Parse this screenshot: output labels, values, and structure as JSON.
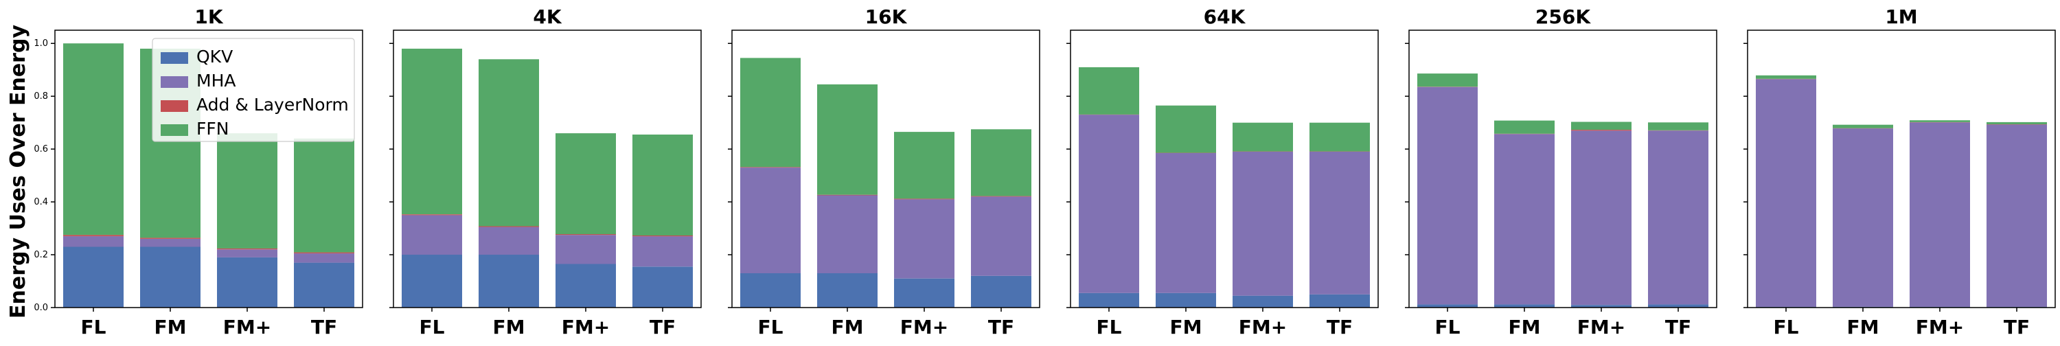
{
  "figure": {
    "ylabel": "Energy Uses Over Energy"
  },
  "legend": {
    "placement": "top-right of first panel",
    "items": [
      "QKV",
      "MHA",
      "Add & LayerNorm",
      "FFN"
    ]
  },
  "colors": {
    "QKV": "#4c72b0",
    "MHA": "#8172b3",
    "Add & LayerNorm": "#c44e52",
    "FFN": "#55a868"
  },
  "chart_data": [
    {
      "type": "bar",
      "stacked": true,
      "title": "1K",
      "categories": [
        "FL",
        "FM",
        "FM+",
        "TF"
      ],
      "ylim": [
        0,
        1.05
      ],
      "yticks": [
        "0.0",
        "0.2",
        "0.4",
        "0.6",
        "0.8",
        "1.0"
      ],
      "show_ytick_labels": true,
      "series": [
        {
          "name": "QKV",
          "values": [
            0.23,
            0.23,
            0.19,
            0.17
          ]
        },
        {
          "name": "MHA",
          "values": [
            0.04,
            0.03,
            0.03,
            0.035
          ]
        },
        {
          "name": "Add & LayerNorm",
          "values": [
            0.005,
            0.004,
            0.004,
            0.004
          ]
        },
        {
          "name": "FFN",
          "values": [
            0.725,
            0.716,
            0.436,
            0.431
          ]
        }
      ]
    },
    {
      "type": "bar",
      "stacked": true,
      "title": "4K",
      "categories": [
        "FL",
        "FM",
        "FM+",
        "TF"
      ],
      "ylim": [
        0,
        1.05
      ],
      "yticks": [
        "0.0",
        "0.2",
        "0.4",
        "0.6",
        "0.8",
        "1.0"
      ],
      "show_ytick_labels": false,
      "series": [
        {
          "name": "QKV",
          "values": [
            0.2,
            0.2,
            0.165,
            0.155
          ]
        },
        {
          "name": "MHA",
          "values": [
            0.15,
            0.105,
            0.11,
            0.115
          ]
        },
        {
          "name": "Add & LayerNorm",
          "values": [
            0.003,
            0.003,
            0.003,
            0.003
          ]
        },
        {
          "name": "FFN",
          "values": [
            0.627,
            0.632,
            0.382,
            0.382
          ]
        }
      ]
    },
    {
      "type": "bar",
      "stacked": true,
      "title": "16K",
      "categories": [
        "FL",
        "FM",
        "FM+",
        "TF"
      ],
      "ylim": [
        0,
        1.05
      ],
      "yticks": [
        "0.0",
        "0.2",
        "0.4",
        "0.6",
        "0.8",
        "1.0"
      ],
      "show_ytick_labels": false,
      "series": [
        {
          "name": "QKV",
          "values": [
            0.13,
            0.13,
            0.11,
            0.12
          ]
        },
        {
          "name": "MHA",
          "values": [
            0.4,
            0.295,
            0.3,
            0.3
          ]
        },
        {
          "name": "Add & LayerNorm",
          "values": [
            0.002,
            0.002,
            0.002,
            0.002
          ]
        },
        {
          "name": "FFN",
          "values": [
            0.413,
            0.418,
            0.253,
            0.253
          ]
        }
      ]
    },
    {
      "type": "bar",
      "stacked": true,
      "title": "64K",
      "categories": [
        "FL",
        "FM",
        "FM+",
        "TF"
      ],
      "ylim": [
        0,
        1.05
      ],
      "yticks": [
        "0.0",
        "0.2",
        "0.4",
        "0.6",
        "0.8",
        "1.0"
      ],
      "show_ytick_labels": false,
      "series": [
        {
          "name": "QKV",
          "values": [
            0.055,
            0.055,
            0.045,
            0.05
          ]
        },
        {
          "name": "MHA",
          "values": [
            0.675,
            0.53,
            0.545,
            0.54
          ]
        },
        {
          "name": "Add & LayerNorm",
          "values": [
            0.001,
            0.001,
            0.001,
            0.001
          ]
        },
        {
          "name": "FFN",
          "values": [
            0.179,
            0.179,
            0.109,
            0.109
          ]
        }
      ]
    },
    {
      "type": "bar",
      "stacked": true,
      "title": "256K",
      "categories": [
        "FL",
        "FM",
        "FM+",
        "TF"
      ],
      "ylim": [
        0,
        1.05
      ],
      "yticks": [
        "0.0",
        "0.2",
        "0.4",
        "0.6",
        "0.8",
        "1.0"
      ],
      "show_ytick_labels": false,
      "series": [
        {
          "name": "QKV",
          "values": [
            0.012,
            0.012,
            0.01,
            0.012
          ]
        },
        {
          "name": "MHA",
          "values": [
            0.823,
            0.645,
            0.66,
            0.658
          ]
        },
        {
          "name": "Add & LayerNorm",
          "values": [
            0.001,
            0.001,
            0.003,
            0.001
          ]
        },
        {
          "name": "FFN",
          "values": [
            0.05,
            0.05,
            0.03,
            0.03
          ]
        }
      ]
    },
    {
      "type": "bar",
      "stacked": true,
      "title": "1M",
      "categories": [
        "FL",
        "FM",
        "FM+",
        "TF"
      ],
      "ylim": [
        0,
        1.05
      ],
      "yticks": [
        "0.0",
        "0.2",
        "0.4",
        "0.6",
        "0.8",
        "1.0"
      ],
      "show_ytick_labels": false,
      "series": [
        {
          "name": "QKV",
          "values": [
            0.003,
            0.003,
            0.003,
            0.003
          ]
        },
        {
          "name": "MHA",
          "values": [
            0.862,
            0.675,
            0.698,
            0.69
          ]
        },
        {
          "name": "Add & LayerNorm",
          "values": [
            0.001,
            0.001,
            0.001,
            0.001
          ]
        },
        {
          "name": "FFN",
          "values": [
            0.013,
            0.013,
            0.007,
            0.008
          ]
        }
      ]
    }
  ]
}
